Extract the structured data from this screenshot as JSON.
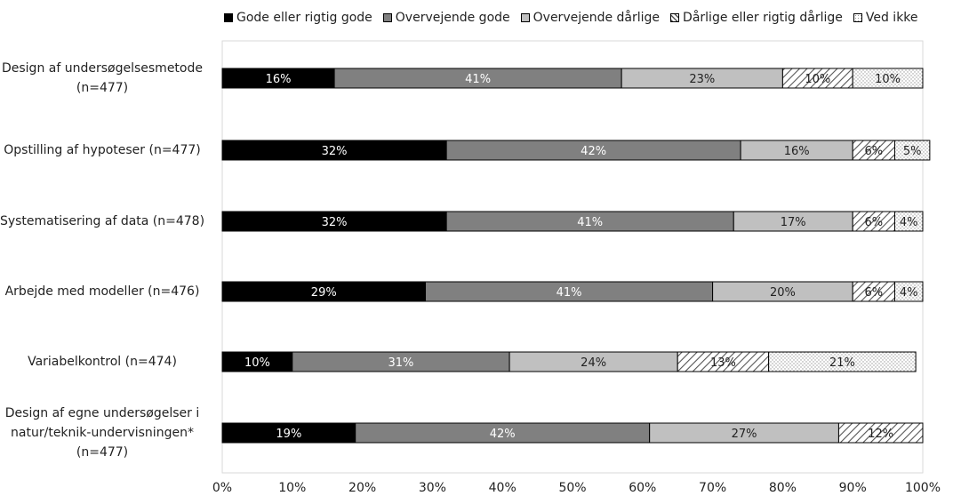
{
  "chart_data": {
    "type": "bar",
    "orientation": "horizontal",
    "stacked": true,
    "categories": [
      "Design af undersøgelsesmetode (n=477)",
      "Opstilling af hypoteser (n=477)",
      "Systematisering af data (n=478)",
      "Arbejde med modeller (n=476)",
      "Variabelkontrol (n=474)",
      "Design af egne undersøgelser i natur/teknik-undervisningen* (n=477)"
    ],
    "category_lines": [
      [
        "Design af undersøgelsesmetode",
        "(n=477)"
      ],
      [
        "Opstilling af hypoteser (n=477)"
      ],
      [
        "Systematisering af data (n=478)"
      ],
      [
        "Arbejde med modeller (n=476)"
      ],
      [
        "Variabelkontrol (n=474)"
      ],
      [
        "Design af egne undersøgelser i",
        "natur/teknik-undervisningen*",
        "(n=477)"
      ]
    ],
    "series": [
      {
        "name": "Gode eller rigtig gode",
        "color": "#000000",
        "pattern": "solid",
        "values": [
          16,
          32,
          32,
          29,
          10,
          19
        ]
      },
      {
        "name": "Overvejende gode",
        "color": "#808080",
        "pattern": "solid",
        "values": [
          41,
          42,
          41,
          41,
          31,
          42
        ]
      },
      {
        "name": "Overvejende dårlige",
        "color": "#c0c0c0",
        "pattern": "solid",
        "values": [
          23,
          16,
          17,
          20,
          24,
          27
        ]
      },
      {
        "name": "Dårlige eller rigtig dårlige",
        "color": "#ffffff",
        "pattern": "diagonal",
        "values": [
          10,
          6,
          6,
          6,
          13,
          12
        ]
      },
      {
        "name": "Ved ikke",
        "color": "#ffffff",
        "pattern": "dots",
        "values": [
          10,
          5,
          4,
          4,
          21,
          0
        ]
      }
    ],
    "data_labels": [
      [
        "16%",
        "41%",
        "23%",
        "10%",
        "10%"
      ],
      [
        "32%",
        "42%",
        "16%",
        "6%",
        "5%"
      ],
      [
        "32%",
        "41%",
        "17%",
        "6%",
        "4%"
      ],
      [
        "29%",
        "41%",
        "20%",
        "6%",
        "4%"
      ],
      [
        "10%",
        "31%",
        "24%",
        "13%",
        "21%"
      ],
      [
        "19%",
        "42%",
        "27%",
        "12%",
        ""
      ]
    ],
    "xlim": [
      0,
      100
    ],
    "x_ticks": [
      "0%",
      "10%",
      "20%",
      "30%",
      "40%",
      "50%",
      "60%",
      "70%",
      "80%",
      "90%",
      "100%"
    ],
    "legend_position": "top",
    "grid": false
  }
}
